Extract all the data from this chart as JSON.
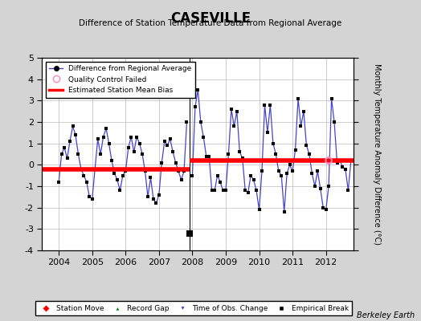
{
  "title": "CASEVILLE",
  "subtitle": "Difference of Station Temperature Data from Regional Average",
  "ylabel": "Monthly Temperature Anomaly Difference (°C)",
  "xlim": [
    2003.5,
    2012.83
  ],
  "ylim": [
    -4,
    5
  ],
  "yticks": [
    -4,
    -3,
    -2,
    -1,
    0,
    1,
    2,
    3,
    4,
    5
  ],
  "xticks": [
    2004,
    2005,
    2006,
    2007,
    2008,
    2009,
    2010,
    2011,
    2012
  ],
  "background_color": "#d4d4d4",
  "plot_background": "#ffffff",
  "line_color": "#4444cc",
  "marker_color": "#000000",
  "bias1_y": -0.2,
  "bias1_xstart": 2003.5,
  "bias1_xend": 2007.92,
  "bias2_y": 0.2,
  "bias2_xstart": 2007.92,
  "bias2_xend": 2012.83,
  "empirical_break_x": 2007.92,
  "empirical_break_y": -3.2,
  "qc_fail_x": 2012.083,
  "qc_fail_y": 0.2,
  "monthly_data": [
    2004.0,
    -0.8,
    2004.083,
    0.5,
    2004.167,
    0.8,
    2004.25,
    0.3,
    2004.333,
    1.1,
    2004.417,
    1.8,
    2004.5,
    1.4,
    2004.583,
    0.5,
    2004.667,
    -0.2,
    2004.75,
    -0.5,
    2004.833,
    -0.8,
    2004.917,
    -1.5,
    2005.0,
    -1.6,
    2005.083,
    -0.2,
    2005.167,
    1.2,
    2005.25,
    0.5,
    2005.333,
    1.3,
    2005.417,
    1.7,
    2005.5,
    1.0,
    2005.583,
    0.2,
    2005.667,
    -0.4,
    2005.75,
    -0.7,
    2005.833,
    -1.2,
    2005.917,
    -0.5,
    2006.0,
    -0.3,
    2006.083,
    0.8,
    2006.167,
    1.3,
    2006.25,
    0.6,
    2006.333,
    1.3,
    2006.417,
    1.0,
    2006.5,
    0.5,
    2006.583,
    -0.3,
    2006.667,
    -1.5,
    2006.75,
    -0.6,
    2006.833,
    -1.6,
    2006.917,
    -1.8,
    2007.0,
    -1.4,
    2007.083,
    0.1,
    2007.167,
    1.1,
    2007.25,
    0.9,
    2007.333,
    1.2,
    2007.417,
    0.6,
    2007.5,
    0.1,
    2007.583,
    -0.3,
    2007.667,
    -0.7,
    2007.75,
    -0.3,
    2007.833,
    2.0,
    2008.0,
    -0.5,
    2008.083,
    2.7,
    2008.167,
    3.5,
    2008.25,
    2.0,
    2008.333,
    1.3,
    2008.417,
    0.4,
    2008.5,
    0.4,
    2008.583,
    -1.2,
    2008.667,
    -1.2,
    2008.75,
    -0.5,
    2008.833,
    -0.8,
    2008.917,
    -1.2,
    2009.0,
    -1.2,
    2009.083,
    0.5,
    2009.167,
    2.6,
    2009.25,
    1.8,
    2009.333,
    2.5,
    2009.417,
    0.6,
    2009.5,
    0.3,
    2009.583,
    -1.2,
    2009.667,
    -1.3,
    2009.75,
    -0.5,
    2009.833,
    -0.7,
    2009.917,
    -1.2,
    2010.0,
    -2.1,
    2010.083,
    -0.3,
    2010.167,
    2.8,
    2010.25,
    1.5,
    2010.333,
    2.8,
    2010.417,
    1.0,
    2010.5,
    0.5,
    2010.583,
    -0.3,
    2010.667,
    -0.5,
    2010.75,
    -2.2,
    2010.833,
    -0.4,
    2010.917,
    0.0,
    2011.0,
    -0.3,
    2011.083,
    0.7,
    2011.167,
    3.1,
    2011.25,
    1.8,
    2011.333,
    2.5,
    2011.417,
    0.9,
    2011.5,
    0.5,
    2011.583,
    -0.4,
    2011.667,
    -1.0,
    2011.75,
    -0.3,
    2011.833,
    -1.1,
    2011.917,
    -2.0,
    2012.0,
    -2.1,
    2012.083,
    -1.0,
    2012.167,
    3.1,
    2012.25,
    2.0,
    2012.333,
    0.1,
    2012.417,
    0.2,
    2012.5,
    -0.1,
    2012.583,
    -0.2,
    2012.667,
    -1.2,
    2012.75,
    0.2
  ],
  "footer": "Berkeley Earth"
}
